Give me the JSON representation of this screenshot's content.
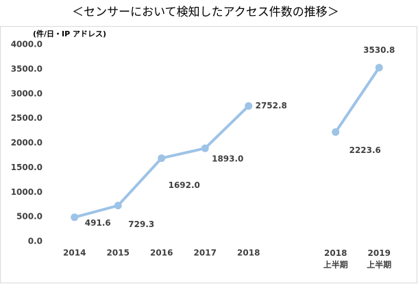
{
  "chart_data": {
    "type": "line",
    "title": "＜センサーにおいて検知したアクセス件数の推移＞",
    "y_label": "(件/日・IP アドレス)",
    "categories": [
      "2014",
      "2015",
      "2016",
      "2017",
      "2018",
      null,
      "2018\n上半期",
      "2019\n上半期"
    ],
    "series": [
      {
        "name": "アクセス件数",
        "color": "#9dc3e6",
        "values": [
          491.6,
          729.3,
          1692.0,
          1893.0,
          2752.8,
          null,
          2223.6,
          3530.8
        ],
        "value_labels": [
          "491.6",
          "729.3",
          "1692.0",
          "1893.0",
          "2752.8",
          null,
          "2223.6",
          "3530.8"
        ]
      }
    ],
    "ylim": [
      0,
      4000
    ],
    "yticks": [
      {
        "value": 0,
        "label": "0.0"
      },
      {
        "value": 500,
        "label": "500.0"
      },
      {
        "value": 1000,
        "label": "1000.0"
      },
      {
        "value": 1500,
        "label": "1500.0"
      },
      {
        "value": 2000,
        "label": "2000.0"
      },
      {
        "value": 2500,
        "label": "2500.0"
      },
      {
        "value": 3000,
        "label": "3000.0"
      },
      {
        "value": 3500,
        "label": "3500.0"
      },
      {
        "value": 4000,
        "label": "4000.0"
      }
    ],
    "grid": false
  }
}
